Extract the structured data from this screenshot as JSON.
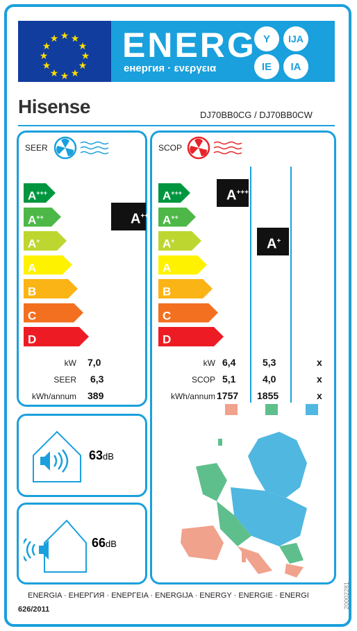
{
  "header": {
    "energy_title": "ENERG",
    "energy_subtitle": "енергия · ενεργεια",
    "lang_codes": [
      "Y",
      "IJA",
      "IE",
      "IA"
    ]
  },
  "brand": "Hisense",
  "model": "DJ70BB0CG / DJ70BB0CW",
  "cooling": {
    "label": "SEER",
    "classes": [
      {
        "label": "A",
        "sup": "+++",
        "color": "#00963f"
      },
      {
        "label": "A",
        "sup": "++",
        "color": "#4db848"
      },
      {
        "label": "A",
        "sup": "+",
        "color": "#bed630"
      },
      {
        "label": "A",
        "sup": "",
        "color": "#fff200"
      },
      {
        "label": "B",
        "sup": "",
        "color": "#fbb416"
      },
      {
        "label": "C",
        "sup": "",
        "color": "#f37021"
      },
      {
        "label": "D",
        "sup": "",
        "color": "#ed1c24"
      }
    ],
    "rating": {
      "label": "A",
      "sup": "++"
    },
    "kw_label": "kW",
    "kw": "7,0",
    "seer_label": "SEER",
    "seer": "6,3",
    "annum_label": "kWh/annum",
    "annum": "389"
  },
  "heating": {
    "label": "SCOP",
    "rating_warm": {
      "label": "A",
      "sup": "+++"
    },
    "rating_avg": {
      "label": "A",
      "sup": "+"
    },
    "kw_label": "kW",
    "kw": [
      "6,4",
      "5,3",
      "x"
    ],
    "scop_label": "SCOP",
    "scop": [
      "5,1",
      "4,0",
      "x"
    ],
    "annum_label": "kWh/annum",
    "annum": [
      "1757",
      "1855",
      "x"
    ],
    "zone_colors": [
      "#f0a28c",
      "#5fbf8c",
      "#4fb7e0"
    ]
  },
  "noise": {
    "indoor": "63",
    "indoor_unit": "dB",
    "outdoor": "66",
    "outdoor_unit": "dB"
  },
  "footer": {
    "languages": "ENERGIA · ЕНЕРГИЯ · ΕΝΕΡΓΕΙΑ · ENERGIJA · ENERGY · ENERGIE · ENERGI",
    "regulation": "626/2011",
    "code": "20002281"
  }
}
